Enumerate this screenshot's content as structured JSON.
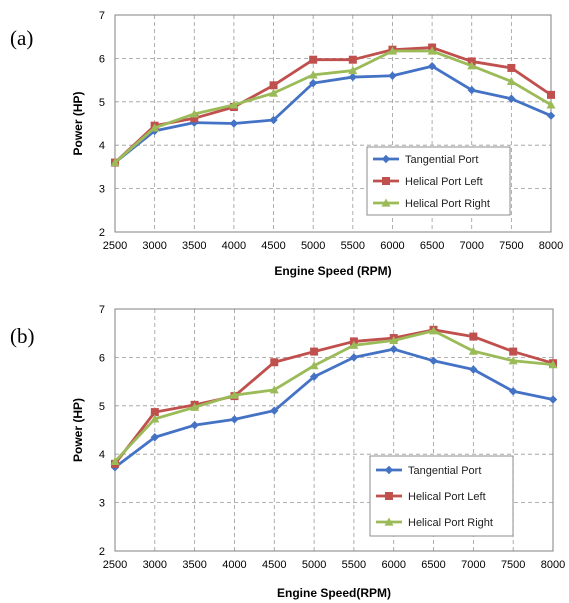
{
  "chart_data": [
    {
      "panel_label": "(a)",
      "type": "line",
      "x": [
        2500,
        3000,
        3500,
        4000,
        4500,
        5000,
        5500,
        6000,
        6500,
        7000,
        7500,
        8000
      ],
      "xlabel": "Engine Speed (RPM)",
      "ylabel": "Power (HP)",
      "ylim": [
        2,
        7
      ],
      "yticks": [
        2,
        3,
        4,
        5,
        6,
        7
      ],
      "grid": true,
      "legend_position": "bottom-right",
      "series": [
        {
          "name": "Tangential Port",
          "color": "#4472C4",
          "marker": "diamond",
          "values": [
            3.6,
            4.33,
            4.52,
            4.5,
            4.58,
            5.43,
            5.57,
            5.6,
            5.82,
            5.27,
            5.07,
            4.68
          ]
        },
        {
          "name": "Helical Port Left",
          "color": "#C0504D",
          "marker": "square",
          "values": [
            3.6,
            4.45,
            4.62,
            4.88,
            5.38,
            5.97,
            5.97,
            6.2,
            6.25,
            5.93,
            5.78,
            5.16
          ]
        },
        {
          "name": "Helical Port Right",
          "color": "#9BBB59",
          "marker": "triangle",
          "values": [
            3.6,
            4.4,
            4.72,
            4.93,
            5.2,
            5.62,
            5.72,
            6.17,
            6.17,
            5.83,
            5.47,
            4.93
          ]
        }
      ]
    },
    {
      "panel_label": "(b)",
      "type": "line",
      "x": [
        2500,
        3000,
        3500,
        4000,
        4500,
        5000,
        5500,
        6000,
        6500,
        7000,
        7500,
        8000
      ],
      "xlabel": "Engine Speed(RPM)",
      "ylabel": "Power (HP)",
      "ylim": [
        2,
        7
      ],
      "yticks": [
        2,
        3,
        4,
        5,
        6,
        7
      ],
      "grid": true,
      "legend_position": "bottom-right",
      "series": [
        {
          "name": "Tangential Port",
          "color": "#4472C4",
          "marker": "diamond",
          "values": [
            3.73,
            4.35,
            4.6,
            4.72,
            4.9,
            5.6,
            6.0,
            6.17,
            5.93,
            5.75,
            5.3,
            5.13
          ]
        },
        {
          "name": "Helical Port Left",
          "color": "#C0504D",
          "marker": "square",
          "values": [
            3.8,
            4.87,
            5.02,
            5.2,
            5.9,
            6.12,
            6.33,
            6.4,
            6.57,
            6.43,
            6.12,
            5.88
          ]
        },
        {
          "name": "Helical Port Right",
          "color": "#9BBB59",
          "marker": "triangle",
          "values": [
            3.85,
            4.73,
            4.97,
            5.22,
            5.33,
            5.83,
            6.25,
            6.35,
            6.55,
            6.13,
            5.93,
            5.85
          ]
        }
      ]
    }
  ]
}
